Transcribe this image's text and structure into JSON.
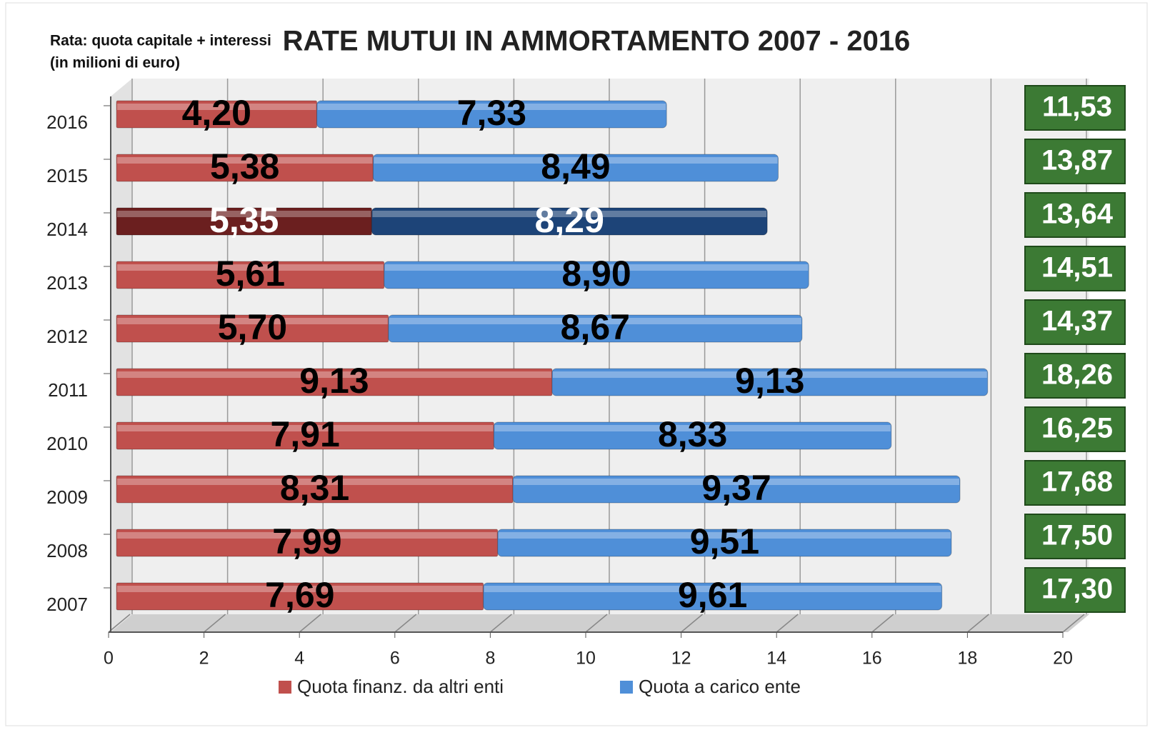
{
  "chart_data": {
    "type": "stacked_barh",
    "title": "RATE MUTUI IN AMMORTAMENTO 2007 - 2016",
    "subtitle": [
      "Rata: quota capitale + interessi",
      "(in milioni di euro)"
    ],
    "categories": [
      "2016",
      "2015",
      "2014",
      "2013",
      "2012",
      "2011",
      "2010",
      "2009",
      "2008",
      "2007"
    ],
    "series": [
      {
        "name": "Quota finanz. da altri enti",
        "color": "#c0504d",
        "highlight_color": "#6b1f1f",
        "values": [
          4.2,
          5.38,
          5.35,
          5.61,
          5.7,
          9.13,
          7.91,
          8.31,
          7.99,
          7.69
        ],
        "value_labels": [
          "4,20",
          "5,38",
          "5,35",
          "5,61",
          "5,70",
          "9,13",
          "7,91",
          "8,31",
          "7,99",
          "7,69"
        ]
      },
      {
        "name": "Quota a carico ente",
        "color": "#4f8fd8",
        "highlight_color": "#1d4478",
        "values": [
          7.33,
          8.49,
          8.29,
          8.9,
          8.67,
          9.13,
          8.33,
          9.37,
          9.51,
          9.61
        ],
        "value_labels": [
          "7,33",
          "8,49",
          "8,29",
          "8,90",
          "8,67",
          "9,13",
          "8,33",
          "9,37",
          "9,51",
          "9,61"
        ]
      }
    ],
    "totals": [
      11.53,
      13.87,
      13.64,
      14.51,
      14.37,
      18.26,
      16.25,
      17.68,
      17.5,
      17.3
    ],
    "total_labels": [
      "11,53",
      "13,87",
      "13,64",
      "14,51",
      "14,37",
      "18,26",
      "16,25",
      "17,68",
      "17,50",
      "17,30"
    ],
    "total_color": "#3c7a34",
    "highlight": 2,
    "xlim": [
      0,
      20
    ],
    "xticks": [
      0,
      2,
      4,
      6,
      8,
      10,
      12,
      14,
      16,
      18,
      20
    ],
    "grid": true,
    "legend": "bottom"
  }
}
